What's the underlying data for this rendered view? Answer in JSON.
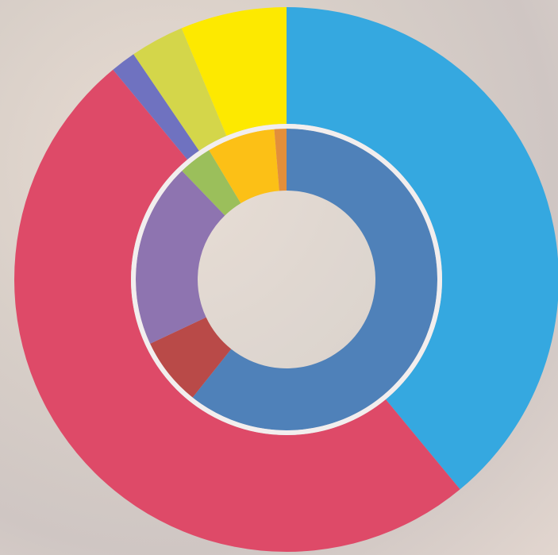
{
  "chart_data": {
    "type": "donut",
    "series": [
      {
        "values": [
          60.7,
          7.3,
          19.8,
          3.6,
          7.3,
          1.3
        ],
        "colors": [
          "#4f81b9",
          "#b94a48",
          "#8e74b0",
          "#9bbf5b",
          "#fcc016",
          "#e38f3a"
        ]
      },
      {
        "values": [
          39,
          50,
          1.5,
          3.2,
          6.3
        ],
        "colors": [
          "#35a8e0",
          "#de4a68",
          "#6f72c0",
          "#d4d64a",
          "#fde900"
        ]
      }
    ]
  }
}
